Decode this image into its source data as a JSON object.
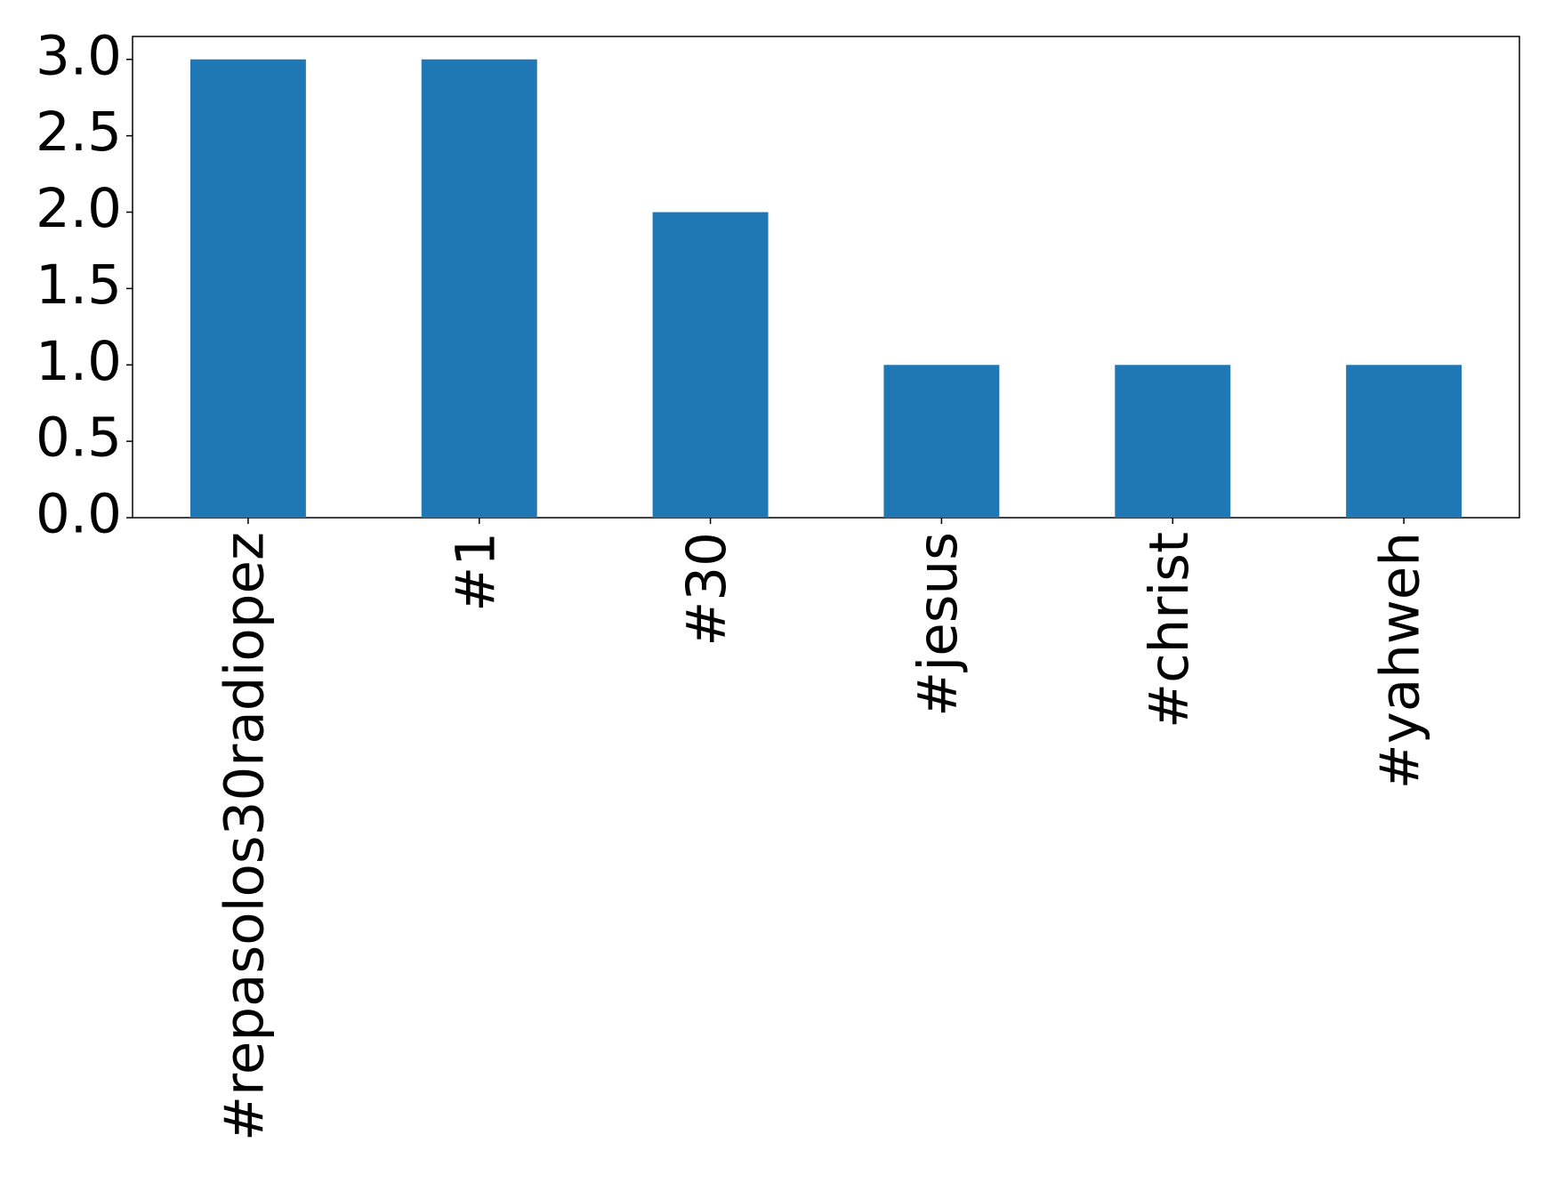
{
  "chart_data": {
    "type": "bar",
    "categories": [
      "#repasolos30radiopez",
      "#1",
      "#30",
      "#jesus",
      "#christ",
      "#yahweh"
    ],
    "values": [
      3,
      3,
      2,
      1,
      1,
      1
    ],
    "color": "#1f77b4",
    "ylim": [
      0,
      3.15
    ],
    "yticks": [
      {
        "value": 0,
        "label": "0.0"
      },
      {
        "value": 0.5,
        "label": "0.5"
      },
      {
        "value": 1,
        "label": "1.0"
      },
      {
        "value": 1.5,
        "label": "1.5"
      },
      {
        "value": 2,
        "label": "2.0"
      },
      {
        "value": 2.5,
        "label": "2.5"
      },
      {
        "value": 3,
        "label": "3.0"
      }
    ],
    "grid": false
  }
}
